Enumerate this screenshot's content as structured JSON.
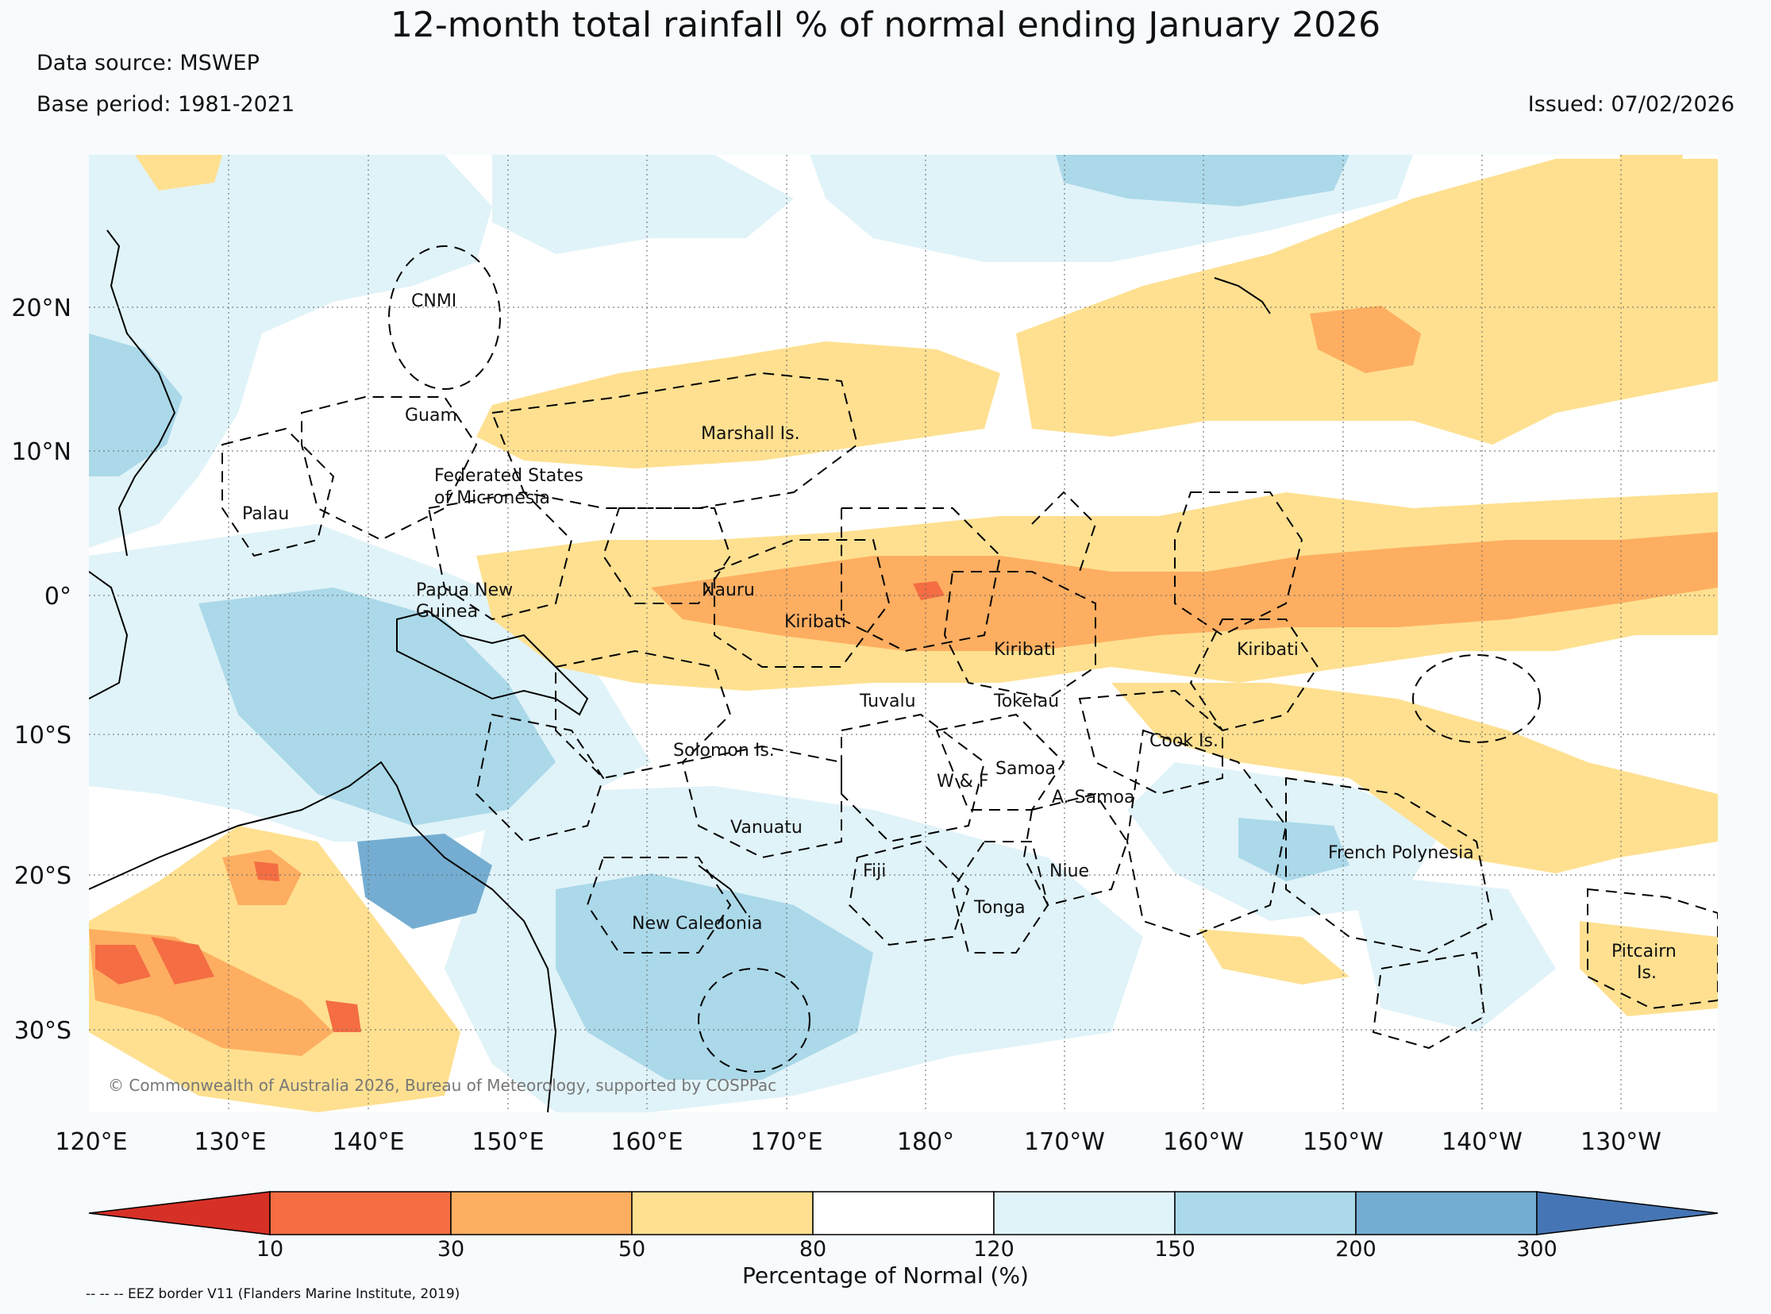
{
  "header": {
    "title": "12-month total rainfall % of normal ending January 2026",
    "data_source": "Data source: MSWEP",
    "base_period": "Base period: 1981-2021",
    "issued": "Issued: 07/02/2026"
  },
  "map": {
    "lat_labels": [
      "20°N",
      "10°N",
      "0°",
      "10°S",
      "20°S",
      "30°S"
    ],
    "lon_labels": [
      "120°E",
      "130°E",
      "140°E",
      "150°E",
      "160°E",
      "170°E",
      "180°",
      "170°W",
      "160°W",
      "150°W",
      "140°W",
      "130°W"
    ],
    "regions": [
      "CNMI",
      "Guam",
      "Marshall Is.",
      "Federated States",
      "of Micronesia",
      "Palau",
      "Papua New",
      "Guinea",
      "Nauru",
      "Kiribati",
      "Kiribati",
      "Kiribati",
      "Tuvalu",
      "Tokelau",
      "Cook Is.",
      "Solomon Is.",
      "Samoa",
      "W & F",
      "A. Samoa",
      "Vanuatu",
      "Fiji",
      "Niue",
      "Tonga",
      "New Caledonia",
      "French Polynesia",
      "Pitcairn",
      "Is."
    ],
    "copyright": "© Commonwealth of Australia 2026, Bureau of Meteorology, supported by COSPPac"
  },
  "colorbar": {
    "title": "Percentage of Normal (%)",
    "labels": [
      "10",
      "30",
      "50",
      "80",
      "120",
      "150",
      "200",
      "300"
    ],
    "colors": [
      "#d73027",
      "#f46d43",
      "#fdae61",
      "#fee090",
      "#ffffff",
      "#e0f3f8",
      "#abd9e9",
      "#74add1",
      "#4575b4"
    ]
  },
  "footnote": "-- -- -- EEZ border V11 (Flanders Marine Institute, 2019)"
}
